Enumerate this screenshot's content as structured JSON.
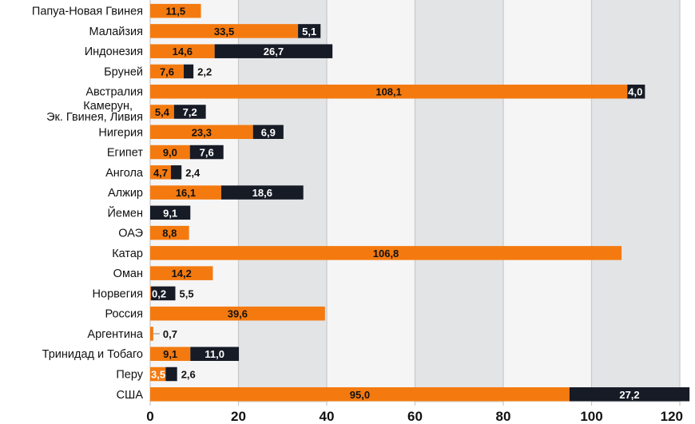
{
  "chart_data": {
    "type": "bar",
    "orientation": "horizontal",
    "stacked": true,
    "categories": [
      "Папуа-Новая Гвинея",
      "Малайзия",
      "Индонезия",
      "Бруней",
      "Австралия",
      "Камерун, Эк. Гвинея, Ливия",
      "Нигерия",
      "Египет",
      "Ангола",
      "Алжир",
      "Йемен",
      "ОАЭ",
      "Катар",
      "Оман",
      "Норвегия",
      "Россия",
      "Аргентина",
      "Тринидад и Тобаго",
      "Перу",
      "США"
    ],
    "category_lines": [
      [
        "Папуа-Новая Гвинея"
      ],
      [
        "Малайзия"
      ],
      [
        "Индонезия"
      ],
      [
        "Бруней"
      ],
      [
        "Австралия"
      ],
      [
        "Камерун,",
        "Эк. Гвинея, Ливия"
      ],
      [
        "Нигерия"
      ],
      [
        "Египет"
      ],
      [
        "Ангола"
      ],
      [
        "Алжир"
      ],
      [
        "Йемен"
      ],
      [
        "ОАЭ"
      ],
      [
        "Катар"
      ],
      [
        "Оман"
      ],
      [
        "Норвегия"
      ],
      [
        "Россия"
      ],
      [
        "Аргентина"
      ],
      [
        "Тринидад и Тобаго"
      ],
      [
        "Перу"
      ],
      [
        "США"
      ]
    ],
    "series": [
      {
        "name": "orange",
        "color": "#f47a0f",
        "values": [
          11.5,
          33.5,
          14.6,
          7.6,
          108.1,
          5.4,
          23.3,
          9.0,
          4.7,
          16.1,
          null,
          8.8,
          106.8,
          14.2,
          0.2,
          39.6,
          0.7,
          9.1,
          3.5,
          95.0
        ],
        "labels": [
          "11,5",
          "33,5",
          "14,6",
          "7,6",
          "108,1",
          "5,4",
          "23,3",
          "9,0",
          "4,7",
          "16,1",
          null,
          "8,8",
          "106,8",
          "14,2",
          "0,2",
          "39,6",
          null,
          "9,1",
          "3,5",
          "95,0"
        ]
      },
      {
        "name": "dark",
        "color": "#161b26",
        "values": [
          null,
          5.1,
          26.7,
          2.2,
          4.0,
          7.2,
          6.9,
          7.6,
          2.4,
          18.6,
          9.1,
          null,
          null,
          null,
          5.5,
          null,
          null,
          11.0,
          2.6,
          27.2
        ],
        "labels": [
          null,
          "5,1",
          "26,7",
          "2,2",
          "4,0",
          "7,2",
          "6,9",
          "7,6",
          "2,4",
          "18,6",
          "9,1",
          null,
          null,
          null,
          "5,5",
          null,
          null,
          "11,0",
          "2,6",
          "27,2"
        ]
      }
    ],
    "outside_labels": [
      null,
      null,
      null,
      "2,2",
      null,
      null,
      null,
      null,
      "2,4",
      null,
      null,
      null,
      null,
      null,
      "5,5",
      null,
      "0,7",
      null,
      "2,6",
      null
    ],
    "xlim": [
      0,
      120
    ],
    "xticks": [
      0,
      20,
      40,
      60,
      80,
      100,
      120
    ],
    "xtick_labels": [
      "0",
      "20",
      "40",
      "60",
      "80",
      "100",
      "120"
    ],
    "grid": "vertical",
    "title": "",
    "xlabel": "",
    "ylabel": ""
  },
  "colors": {
    "orange": "#f47a0f",
    "dark": "#161b26",
    "band_light": "#f5f5f6",
    "band_dark": "#e3e4e6",
    "grid": "#c8c9cc"
  }
}
